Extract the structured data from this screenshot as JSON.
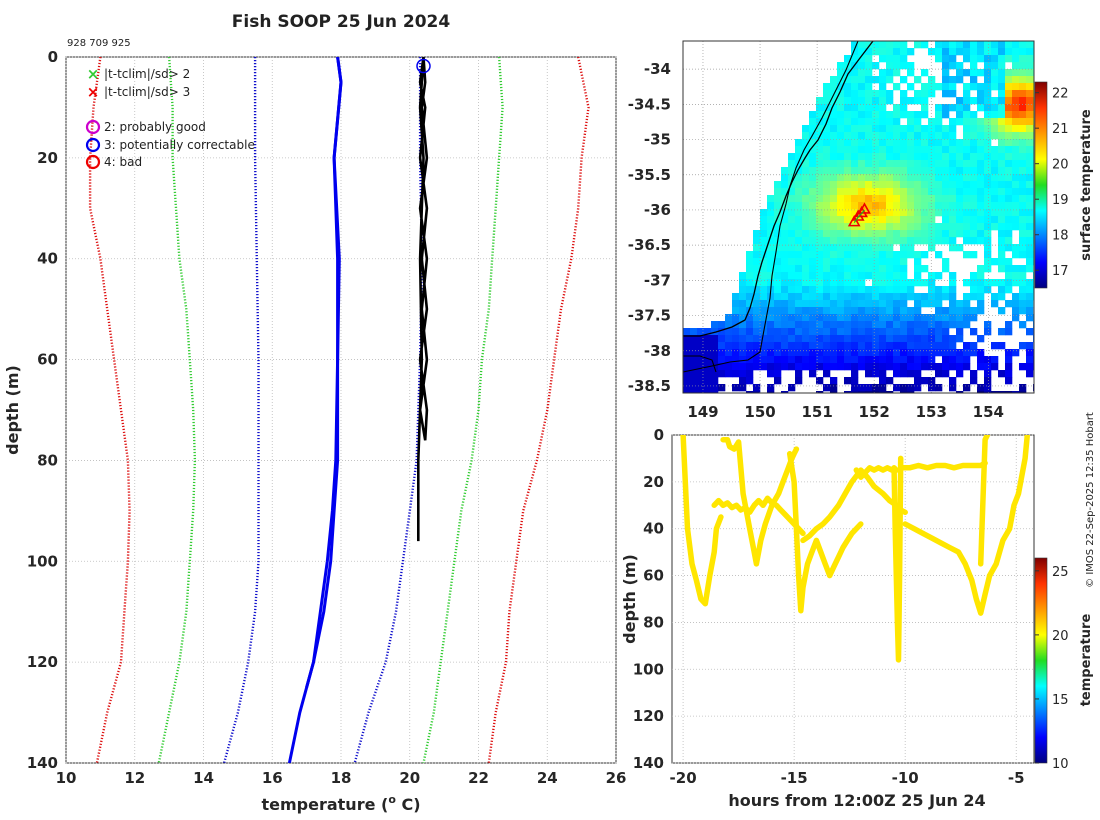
{
  "figure": {
    "title": "Fish SOOP 25 Jun 2024",
    "id_label": "928 709 925",
    "credit": "© IMOS 22-Sep-2025 12:35 Hobart"
  },
  "chart_data": [
    {
      "type": "line",
      "name": "profile",
      "xlabel": "temperature (",
      "xlabel_sup": "o",
      "xlabel_end": " C)",
      "ylabel": "depth (m)",
      "xlim": [
        10,
        26
      ],
      "ylim": [
        0,
        140
      ],
      "xticks": [
        10,
        12,
        14,
        16,
        18,
        20,
        22,
        24,
        26
      ],
      "yticks": [
        0,
        20,
        40,
        60,
        80,
        100,
        120,
        140
      ],
      "legend": [
        {
          "label": "|t-tclim|/sd> 2",
          "marker": "x",
          "color": "#33cc33"
        },
        {
          "label": "|t-tclim|/sd> 3",
          "marker": "x",
          "color": "#ee0000"
        },
        {
          "label": "2: probably good",
          "marker": "o",
          "color": "#cc00cc"
        },
        {
          "label": "3: potentially correctable",
          "marker": "o",
          "color": "#0000ee"
        },
        {
          "label": "4: bad",
          "marker": "o",
          "color": "#ee0000"
        }
      ],
      "series": [
        {
          "name": "clim -3sd",
          "color": "#dd1111",
          "style": "dotted",
          "depth": [
            0,
            10,
            20,
            30,
            40,
            50,
            60,
            70,
            80,
            90,
            100,
            110,
            120,
            130,
            140
          ],
          "temp": [
            11.0,
            10.8,
            10.7,
            10.7,
            11.0,
            11.2,
            11.4,
            11.6,
            11.8,
            11.85,
            11.8,
            11.7,
            11.6,
            11.2,
            10.9
          ]
        },
        {
          "name": "clim +3sd",
          "color": "#dd1111",
          "style": "dotted",
          "depth": [
            0,
            10,
            20,
            30,
            40,
            50,
            60,
            70,
            80,
            90,
            100,
            110,
            120,
            130,
            140
          ],
          "temp": [
            24.9,
            25.2,
            25.0,
            24.9,
            24.7,
            24.4,
            24.2,
            24.0,
            23.7,
            23.3,
            23.1,
            22.9,
            22.8,
            22.5,
            22.3
          ]
        },
        {
          "name": "clim -2sd",
          "color": "#33cc33",
          "style": "dotted",
          "depth": [
            0,
            10,
            20,
            30,
            40,
            50,
            60,
            70,
            80,
            90,
            100,
            110,
            120,
            130,
            140
          ],
          "temp": [
            13.0,
            13.1,
            13.1,
            13.2,
            13.3,
            13.5,
            13.6,
            13.7,
            13.75,
            13.7,
            13.6,
            13.5,
            13.3,
            13.0,
            12.7
          ]
        },
        {
          "name": "clim +2sd",
          "color": "#33cc33",
          "style": "dotted",
          "depth": [
            0,
            10,
            20,
            30,
            40,
            50,
            60,
            70,
            80,
            90,
            100,
            110,
            120,
            130,
            140
          ],
          "temp": [
            22.6,
            22.7,
            22.6,
            22.5,
            22.4,
            22.3,
            22.1,
            22.0,
            21.8,
            21.5,
            21.3,
            21.1,
            20.9,
            20.7,
            20.4
          ]
        },
        {
          "name": "clim -1sd",
          "color": "#1111cc",
          "style": "dotted",
          "depth": [
            0,
            20,
            40,
            60,
            80,
            100,
            110,
            120,
            130,
            140
          ],
          "temp": [
            15.5,
            15.5,
            15.55,
            15.6,
            15.6,
            15.6,
            15.5,
            15.3,
            15.0,
            14.6
          ]
        },
        {
          "name": "clim +1sd",
          "color": "#1111cc",
          "style": "dotted",
          "depth": [
            0,
            20,
            40,
            60,
            80,
            90,
            100,
            110,
            120,
            130,
            140
          ],
          "temp": [
            20.3,
            20.3,
            20.35,
            20.3,
            20.2,
            20.0,
            19.8,
            19.6,
            19.3,
            18.8,
            18.4
          ]
        },
        {
          "name": "clim mean",
          "color": "#0000ee",
          "style": "solid",
          "depth": [
            0,
            5,
            20,
            40,
            60,
            80,
            90,
            100,
            110,
            120,
            130,
            140
          ],
          "temp": [
            17.9,
            18.0,
            17.8,
            17.9,
            17.9,
            17.85,
            17.75,
            17.6,
            17.4,
            17.2,
            16.8,
            16.5
          ]
        },
        {
          "name": "clim mean return",
          "color": "#0000ee",
          "style": "solid",
          "depth": [
            125,
            120,
            110,
            100,
            90,
            80,
            60,
            40,
            20,
            5,
            0
          ],
          "temp": [
            17.0,
            17.2,
            17.5,
            17.7,
            17.8,
            17.9,
            17.9,
            17.95,
            17.8,
            18.0,
            17.9
          ]
        },
        {
          "name": "observed",
          "color": "#000000",
          "style": "solid",
          "depth": [
            0,
            5,
            10,
            20,
            30,
            40,
            50,
            60,
            70,
            76,
            70,
            60,
            50,
            40,
            30,
            20,
            10,
            5,
            0,
            10,
            20,
            40,
            60,
            80,
            96
          ],
          "temp": [
            20.4,
            20.45,
            20.35,
            20.5,
            20.3,
            20.5,
            20.35,
            20.5,
            20.3,
            20.45,
            20.5,
            20.3,
            20.5,
            20.35,
            20.5,
            20.3,
            20.45,
            20.3,
            20.4,
            20.3,
            20.4,
            20.3,
            20.35,
            20.25,
            20.25
          ]
        }
      ],
      "flag_point": {
        "temp": 20.4,
        "depth": 1,
        "flag": "3: potentially correctable"
      }
    },
    {
      "type": "heatmap",
      "name": "sst_map",
      "xticks": [
        149,
        150,
        151,
        152,
        153,
        154
      ],
      "yticks": [
        -34,
        -34.5,
        -35,
        -35.5,
        -36,
        -36.5,
        -37,
        -37.5,
        -38,
        -38.5
      ],
      "xlim": [
        148.65,
        154.8
      ],
      "ylim": [
        -38.6,
        -33.6
      ],
      "colorbar_label": "surface temperature",
      "colorbar_ticks": [
        17,
        18,
        19,
        20,
        21,
        22
      ],
      "colorbar_range": [
        16.5,
        22.3
      ],
      "track": [
        {
          "lon": 151.65,
          "lat": -36.18
        },
        {
          "lon": 151.72,
          "lat": -36.1
        },
        {
          "lon": 151.78,
          "lat": -36.05
        },
        {
          "lon": 151.83,
          "lat": -36.0
        }
      ]
    },
    {
      "type": "scatter",
      "name": "section",
      "xlabel": "hours from 12:00Z 25 Jun 24",
      "ylabel": "depth (m)",
      "xticks": [
        -20,
        -15,
        -10,
        -5
      ],
      "xtick_labels": [
        "-20",
        "-15",
        "-10",
        "-5"
      ],
      "yticks": [
        0,
        20,
        40,
        60,
        80,
        100,
        120,
        140
      ],
      "xlim": [
        -20.5,
        -4.2
      ],
      "ylim": [
        0,
        140
      ],
      "colorbar_label": "temperature",
      "colorbar_ticks": [
        10,
        15,
        20,
        25
      ],
      "colorbar_range": [
        10,
        26
      ],
      "point_color_value": 20.4,
      "tracks": [
        {
          "hours": [
            -20,
            -19.9,
            -19.8,
            -19.6,
            -19.4,
            -19.2,
            -19.0,
            -18.8,
            -18.6,
            -18.5,
            -18.3
          ],
          "depth": [
            0,
            20,
            40,
            55,
            62,
            70,
            72,
            60,
            50,
            40,
            35
          ]
        },
        {
          "hours": [
            -18.6,
            -18.4,
            -18.2,
            -18.0,
            -17.8,
            -17.6,
            -17.4,
            -17.2,
            -17.0,
            -16.8,
            -16.6,
            -16.4,
            -16.2,
            -16.0,
            -15.8,
            -15.6,
            -15.4,
            -15.2,
            -15.0,
            -14.8,
            -14.6
          ],
          "depth": [
            30,
            28,
            30,
            29,
            31,
            30,
            32,
            31,
            33,
            30,
            28,
            30,
            27,
            29,
            30,
            32,
            34,
            36,
            38,
            40,
            42
          ]
        },
        {
          "hours": [
            -18.2,
            -18.0,
            -17.9,
            -17.7,
            -17.5,
            -17.3,
            -17.0,
            -16.8,
            -16.7,
            -16.5,
            -16.3,
            -16.0,
            -15.7,
            -15.5,
            -15.3,
            -15.1,
            -15.0,
            -14.9
          ],
          "depth": [
            2,
            2,
            5,
            6,
            3,
            25,
            40,
            50,
            55,
            45,
            38,
            30,
            25,
            20,
            15,
            10,
            8,
            6
          ]
        },
        {
          "hours": [
            -15.2,
            -15.0,
            -14.9,
            -14.8,
            -14.7,
            -14.6,
            -14.4,
            -14.2,
            -14.0,
            -13.8,
            -13.6,
            -13.4,
            -13.2,
            -13.0,
            -12.8,
            -12.6,
            -12.4,
            -12.2,
            -12.0
          ],
          "depth": [
            8,
            20,
            40,
            60,
            75,
            65,
            55,
            50,
            45,
            50,
            55,
            60,
            56,
            52,
            48,
            45,
            42,
            40,
            38
          ]
        },
        {
          "hours": [
            -14.6,
            -14.3,
            -14.0,
            -13.7,
            -13.4,
            -13.0,
            -12.7,
            -12.4,
            -12.0,
            -11.7,
            -11.4,
            -11.0,
            -10.7,
            -10.4,
            -10.2,
            -10.0
          ],
          "depth": [
            45,
            43,
            40,
            38,
            35,
            30,
            25,
            20,
            15,
            18,
            22,
            25,
            28,
            30,
            32,
            33
          ]
        },
        {
          "hours": [
            -12.2,
            -12.0,
            -11.8,
            -11.6,
            -11.4,
            -11.2,
            -11.0,
            -10.8,
            -10.6,
            -10.5,
            -10.4
          ],
          "depth": [
            15,
            18,
            16,
            14,
            15,
            14,
            15,
            14,
            15,
            14,
            15
          ]
        },
        {
          "hours": [
            -10.5,
            -10.45,
            -10.4,
            -10.35,
            -10.3,
            -10.25,
            -10.2
          ],
          "depth": [
            15,
            40,
            60,
            80,
            96,
            60,
            10
          ]
        },
        {
          "hours": [
            -10.2,
            -9.8,
            -9.4,
            -9.0,
            -8.6,
            -8.2,
            -7.8,
            -7.4,
            -7.0,
            -6.6,
            -6.4
          ],
          "depth": [
            14,
            14,
            13,
            14,
            13,
            13,
            14,
            13,
            13,
            13,
            12
          ]
        },
        {
          "hours": [
            -10.0,
            -9.6,
            -9.2,
            -8.8,
            -8.4,
            -8.0,
            -7.6,
            -7.3,
            -7.0,
            -6.8,
            -6.6,
            -6.4,
            -6.2
          ],
          "depth": [
            38,
            40,
            42,
            44,
            46,
            48,
            50,
            55,
            62,
            70,
            76,
            68,
            60
          ]
        },
        {
          "hours": [
            -6.6,
            -6.4,
            -6.3
          ],
          "depth": [
            55,
            2,
            0
          ]
        },
        {
          "hours": [
            -6.2,
            -5.9,
            -5.6,
            -5.3,
            -5.1,
            -4.9,
            -4.7,
            -4.6,
            -4.5
          ],
          "depth": [
            60,
            55,
            45,
            40,
            30,
            25,
            15,
            10,
            0
          ]
        }
      ]
    }
  ]
}
